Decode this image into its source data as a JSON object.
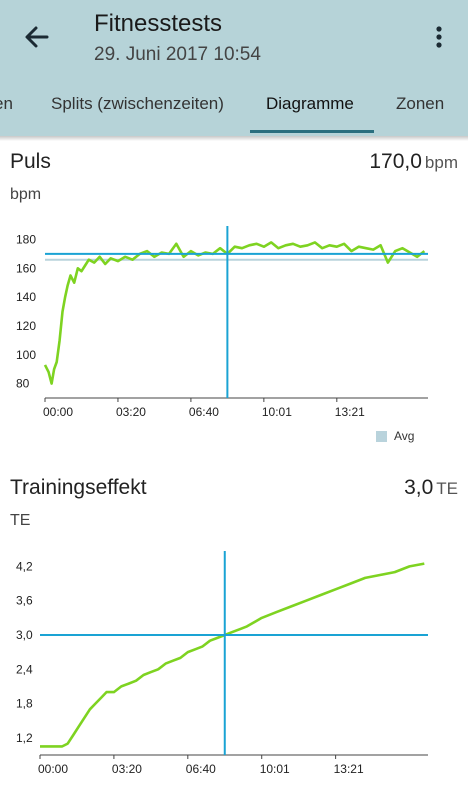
{
  "appbar": {
    "back_icon": "arrow-left-icon",
    "title": "Fitnesstests",
    "subtitle": "29. Juni 2017 10:54",
    "menu_icon": "more-vert-icon"
  },
  "tabs": [
    {
      "label": "en"
    },
    {
      "label": "Splits (zwischenzeiten)"
    },
    {
      "label": "Diagramme",
      "active": true
    },
    {
      "label": "Zonen"
    }
  ],
  "colors": {
    "appbar": "#b6d3d8",
    "series": "#7ed321",
    "crosshair": "#1aa3d4",
    "average": "#b9d3dc",
    "tab_indicator": "#2b6f7f"
  },
  "puls": {
    "title": "Puls",
    "value": "170,0",
    "value_unit": "bpm",
    "unit": "bpm",
    "legend_label": "Avg"
  },
  "te": {
    "title": "Trainingseffekt",
    "value": "3,0",
    "value_unit": "TE",
    "unit": "TE"
  },
  "chart_data": [
    {
      "type": "line",
      "title": "Puls",
      "ylabel": "bpm",
      "x_tick_labels": [
        "00:00",
        "03:20",
        "06:40",
        "10:01",
        "13:21"
      ],
      "y_tick_labels": [
        "80",
        "100",
        "120",
        "140",
        "160",
        "180"
      ],
      "xlim": [
        0,
        1050
      ],
      "ylim": [
        70,
        188
      ],
      "x_unit": "seconds",
      "crosshair": {
        "x": 500,
        "y": 170
      },
      "average": 166,
      "legend": [
        "Avg"
      ],
      "series": [
        {
          "name": "Puls",
          "x": [
            0,
            10,
            18,
            25,
            32,
            40,
            48,
            55,
            62,
            70,
            80,
            90,
            100,
            110,
            120,
            135,
            150,
            165,
            180,
            200,
            220,
            240,
            260,
            280,
            300,
            320,
            340,
            360,
            380,
            400,
            420,
            440,
            460,
            480,
            500,
            520,
            540,
            560,
            580,
            600,
            620,
            640,
            660,
            680,
            700,
            720,
            740,
            760,
            780,
            800,
            820,
            840,
            860,
            880,
            900,
            920,
            940,
            960,
            980,
            1000,
            1020,
            1040
          ],
          "y": [
            93,
            88,
            80,
            90,
            95,
            110,
            130,
            140,
            148,
            155,
            150,
            160,
            158,
            162,
            166,
            164,
            168,
            163,
            167,
            165,
            168,
            166,
            170,
            172,
            168,
            171,
            170,
            177,
            168,
            172,
            169,
            171,
            170,
            174,
            170,
            175,
            174,
            176,
            177,
            175,
            178,
            174,
            176,
            177,
            175,
            176,
            178,
            174,
            176,
            175,
            177,
            172,
            175,
            174,
            173,
            176,
            164,
            172,
            174,
            171,
            168,
            172
          ]
        }
      ]
    },
    {
      "type": "line",
      "title": "Trainingseffekt",
      "ylabel": "TE",
      "x_tick_labels": [
        "00:00",
        "03:20",
        "06:40",
        "10:01",
        "13:21"
      ],
      "y_tick_labels": [
        "1,2",
        "1,8",
        "2,4",
        "3,0",
        "3,6",
        "4,2"
      ],
      "xlim": [
        0,
        1050
      ],
      "ylim": [
        0.9,
        4.4
      ],
      "x_unit": "seconds",
      "crosshair": {
        "x": 500,
        "y": 3.0
      },
      "series": [
        {
          "name": "Trainingseffekt",
          "x": [
            0,
            60,
            75,
            90,
            105,
            120,
            135,
            150,
            165,
            180,
            200,
            220,
            240,
            260,
            280,
            300,
            320,
            340,
            360,
            380,
            400,
            420,
            440,
            460,
            480,
            500,
            520,
            540,
            560,
            600,
            640,
            680,
            720,
            760,
            800,
            840,
            880,
            920,
            960,
            1000,
            1040
          ],
          "y": [
            1.05,
            1.05,
            1.1,
            1.25,
            1.4,
            1.55,
            1.7,
            1.8,
            1.9,
            2.0,
            2.0,
            2.1,
            2.15,
            2.2,
            2.3,
            2.35,
            2.4,
            2.5,
            2.55,
            2.6,
            2.7,
            2.75,
            2.8,
            2.9,
            2.95,
            3.0,
            3.05,
            3.1,
            3.15,
            3.3,
            3.4,
            3.5,
            3.6,
            3.7,
            3.8,
            3.9,
            4.0,
            4.05,
            4.1,
            4.2,
            4.25
          ]
        }
      ]
    }
  ]
}
